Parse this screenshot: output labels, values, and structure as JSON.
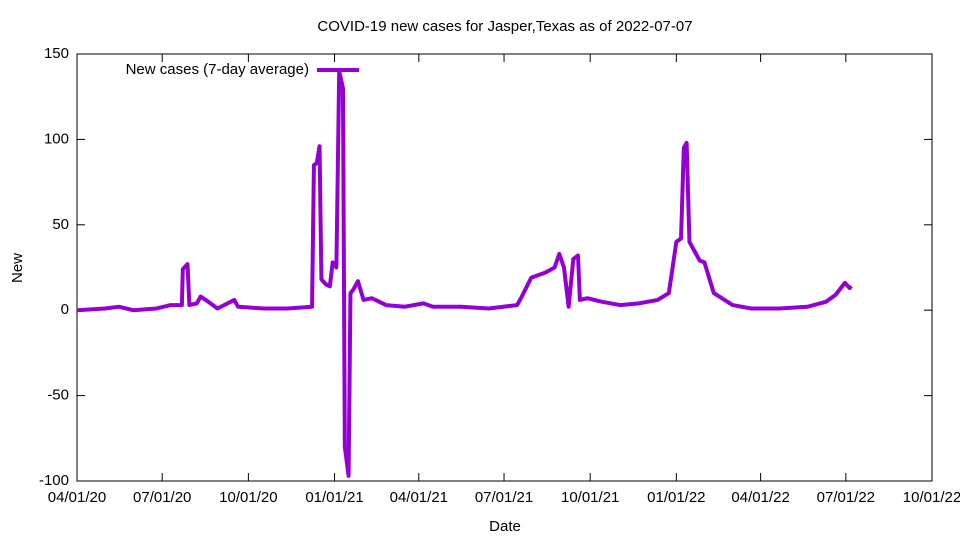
{
  "chart_data": {
    "type": "line",
    "title": "COVID-19 new cases for Jasper,Texas as of 2022-07-07",
    "x_label": "Date",
    "y_label": "New",
    "legend": "top-left",
    "xlim": [
      "2020-04-01",
      "2022-10-01"
    ],
    "xticks": [
      {
        "value": "2020-04-01",
        "label": "04/01/20"
      },
      {
        "value": "2020-07-01",
        "label": "07/01/20"
      },
      {
        "value": "2020-10-01",
        "label": "10/01/20"
      },
      {
        "value": "2021-01-01",
        "label": "01/01/21"
      },
      {
        "value": "2021-04-01",
        "label": "04/01/21"
      },
      {
        "value": "2021-07-01",
        "label": "07/01/21"
      },
      {
        "value": "2021-10-01",
        "label": "10/01/21"
      },
      {
        "value": "2022-01-01",
        "label": "01/01/22"
      },
      {
        "value": "2022-04-01",
        "label": "04/01/22"
      },
      {
        "value": "2022-07-01",
        "label": "07/01/22"
      },
      {
        "value": "2022-10-01",
        "label": "10/01/22"
      }
    ],
    "ylim": [
      -100,
      150
    ],
    "yticks": [
      -100,
      -50,
      0,
      50,
      100,
      150
    ],
    "x": [
      "2020-04-01",
      "2020-05-01",
      "2020-05-16",
      "2020-05-31",
      "2020-06-25",
      "2020-07-10",
      "2020-07-22",
      "2020-07-23",
      "2020-07-28",
      "2020-07-30",
      "2020-08-07",
      "2020-08-11",
      "2020-08-19",
      "2020-08-29",
      "2020-09-16",
      "2020-09-20",
      "2020-10-18",
      "2020-11-12",
      "2020-12-08",
      "2020-12-10",
      "2020-12-13",
      "2020-12-16",
      "2020-12-18",
      "2020-12-23",
      "2020-12-27",
      "2020-12-30",
      "2021-01-03",
      "2021-01-06",
      "2021-01-10",
      "2021-01-12",
      "2021-01-16",
      "2021-01-18",
      "2021-01-21",
      "2021-01-26",
      "2021-02-01",
      "2021-02-10",
      "2021-02-25",
      "2021-03-17",
      "2021-04-06",
      "2021-04-16",
      "2021-05-16",
      "2021-06-15",
      "2021-07-15",
      "2021-07-20",
      "2021-07-30",
      "2021-08-04",
      "2021-08-14",
      "2021-08-24",
      "2021-08-29",
      "2021-09-03",
      "2021-09-08",
      "2021-09-13",
      "2021-09-18",
      "2021-09-20",
      "2021-09-28",
      "2021-10-13",
      "2021-11-02",
      "2021-11-22",
      "2021-12-12",
      "2021-12-24",
      "2022-01-01",
      "2022-01-06",
      "2022-01-09",
      "2022-01-12",
      "2022-01-15",
      "2022-01-26",
      "2022-01-31",
      "2022-02-10",
      "2022-03-02",
      "2022-03-22",
      "2022-04-21",
      "2022-05-21",
      "2022-06-10",
      "2022-06-20",
      "2022-06-30",
      "2022-07-05",
      "2022-07-07"
    ],
    "series": [
      {
        "name": "New cases (7-day average)",
        "color": "#9400d3",
        "values": [
          0,
          1,
          2,
          0,
          1,
          3,
          3,
          24,
          27,
          3,
          4,
          8,
          5,
          1,
          6,
          2,
          1,
          1,
          2,
          85,
          86,
          96,
          18,
          15,
          14,
          28,
          25,
          140,
          130,
          -80,
          -97,
          10,
          12,
          17,
          6,
          7,
          3,
          2,
          4,
          2,
          2,
          1,
          3,
          8,
          19,
          20,
          22,
          25,
          33,
          25,
          2,
          30,
          32,
          6,
          7,
          5,
          3,
          4,
          6,
          10,
          40,
          42,
          95,
          98,
          40,
          29,
          28,
          10,
          3,
          1,
          1,
          2,
          5,
          9,
          16,
          13,
          14
        ]
      }
    ]
  }
}
